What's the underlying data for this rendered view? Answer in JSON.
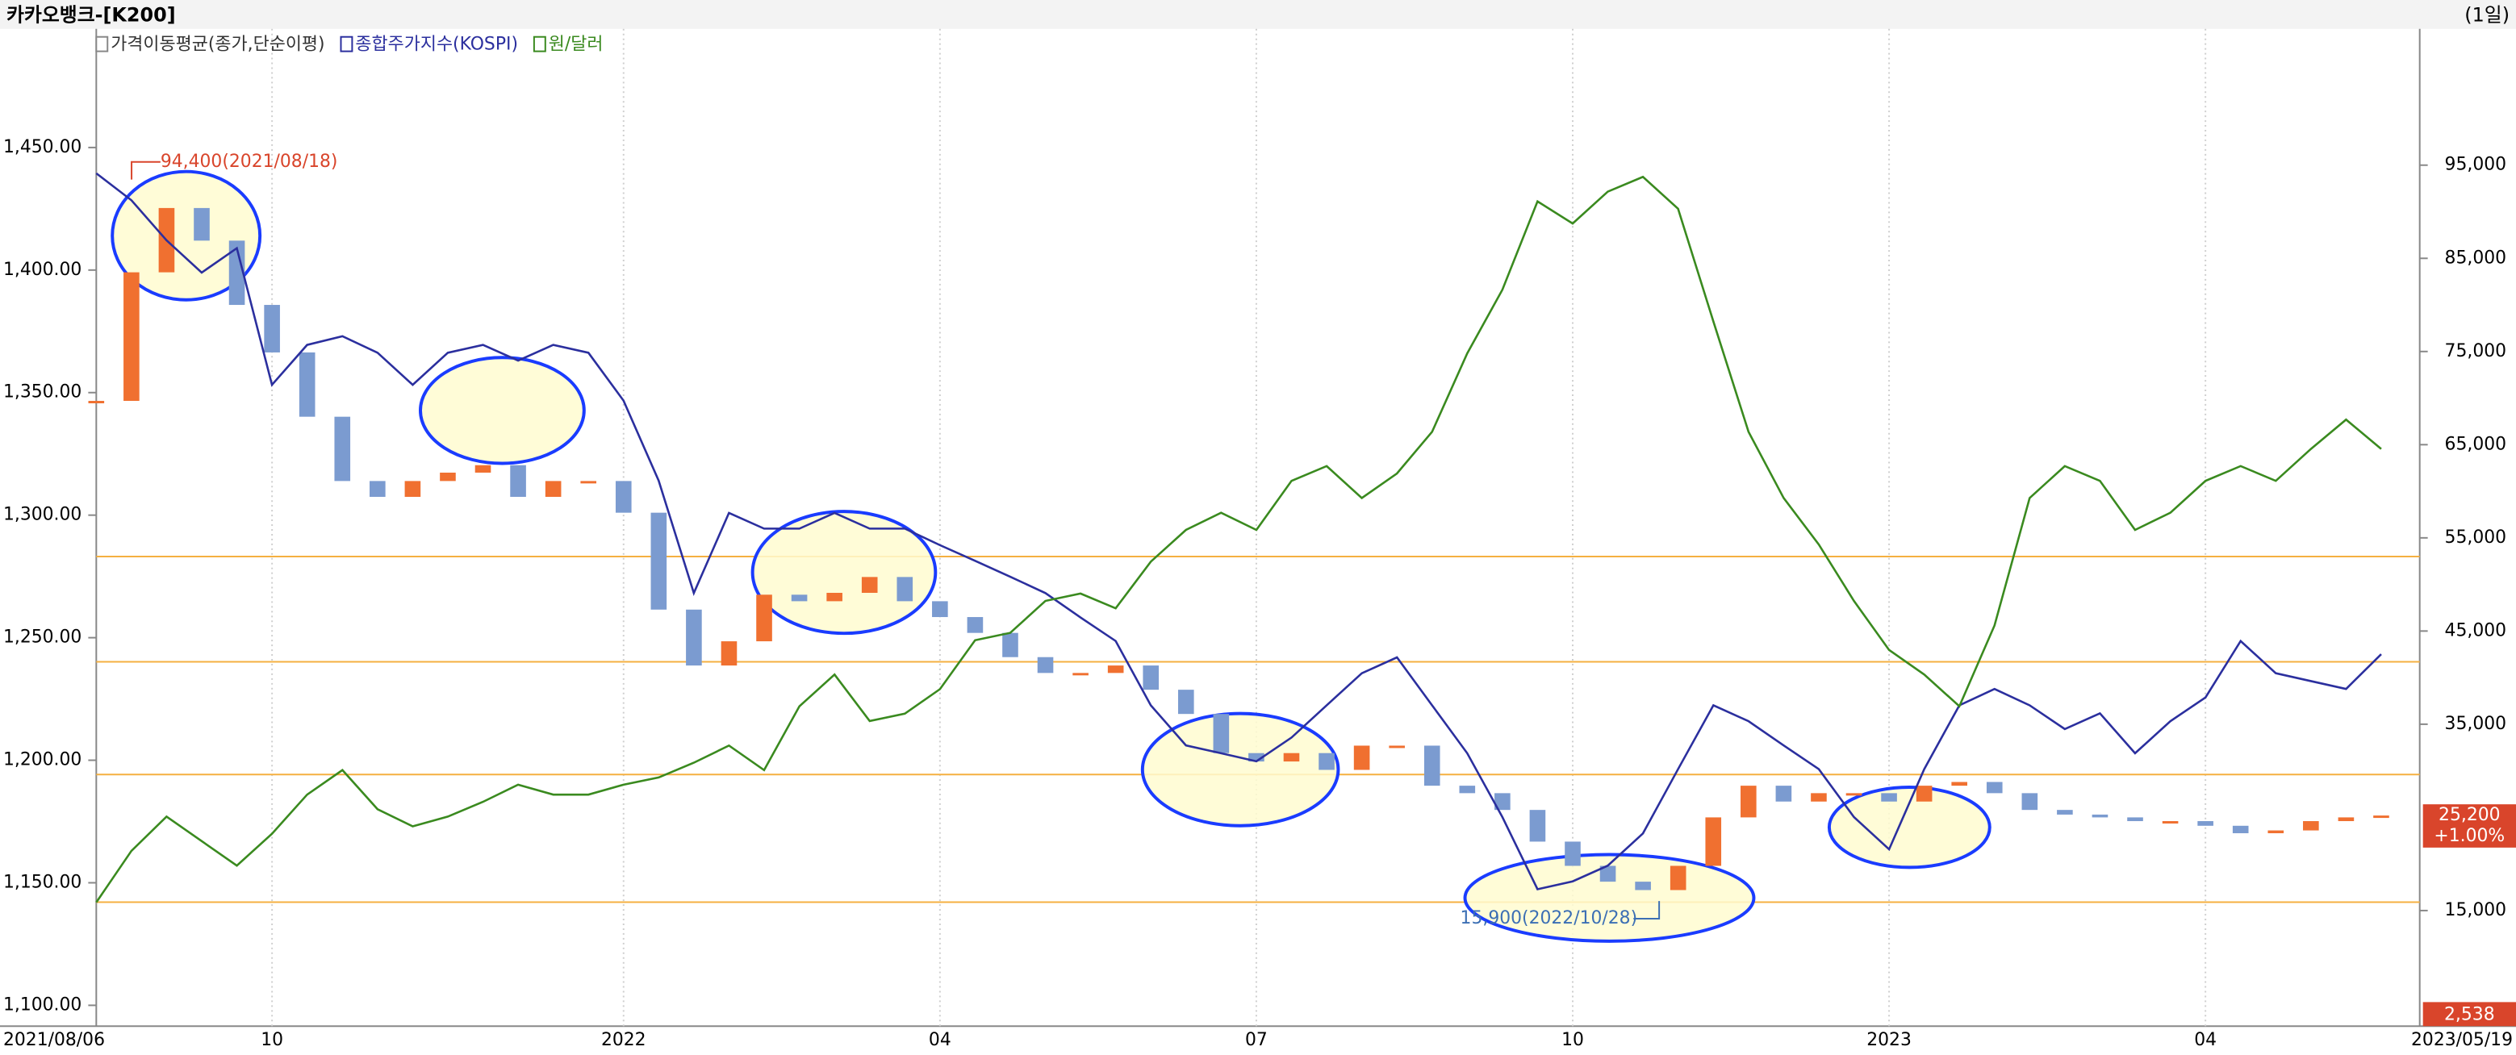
{
  "chart_data": {
    "type": "line",
    "title": "카카오뱅크-[K200]",
    "period": "(1일)",
    "categories": [
      "2021/08/06",
      null,
      null,
      null,
      null,
      "10",
      null,
      null,
      null,
      null,
      null,
      null,
      null,
      null,
      null,
      "2022",
      null,
      null,
      null,
      null,
      null,
      null,
      null,
      null,
      "04",
      null,
      null,
      null,
      null,
      null,
      null,
      null,
      null,
      "07",
      null,
      null,
      null,
      null,
      null,
      null,
      null,
      null,
      "10",
      null,
      null,
      null,
      null,
      null,
      null,
      null,
      null,
      "2023",
      null,
      null,
      null,
      null,
      null,
      null,
      null,
      null,
      "04",
      null,
      null,
      null,
      null,
      "2023/05/19"
    ],
    "ylim": [
      1090,
      1485
    ],
    "yticks": [
      {
        "value": 1100,
        "label": "1,100.00"
      },
      {
        "value": 1150,
        "label": "1,150.00"
      },
      {
        "value": 1200,
        "label": "1,200.00"
      },
      {
        "value": 1250,
        "label": "1,250.00"
      },
      {
        "value": 1300,
        "label": "1,300.00"
      },
      {
        "value": 1350,
        "label": "1,350.00"
      },
      {
        "value": 1400,
        "label": "1,400.00"
      },
      {
        "value": 1450,
        "label": "1,450.00"
      }
    ],
    "y2lim": [
      2200,
      106100
    ],
    "y2ticks": [
      {
        "value": 15000,
        "label": "15,000"
      },
      {
        "value": 35000,
        "label": "35,000"
      },
      {
        "value": 45000,
        "label": "45,000"
      },
      {
        "value": 55000,
        "label": "55,000"
      },
      {
        "value": 65000,
        "label": "65,000"
      },
      {
        "value": 75000,
        "label": "75,000"
      },
      {
        "value": 85000,
        "label": "85,000"
      },
      {
        "value": 95000,
        "label": "95,000"
      }
    ],
    "y3lim": [
      1966,
      3440
    ],
    "grid": true,
    "series": [
      {
        "name": "가격이동평균(종가,단순이평)",
        "type": "candle",
        "axis": "y2",
        "color": "#f07030",
        "down_color": "#7b9bd0",
        "values": [
          69700,
          83500,
          90400,
          86900,
          80000,
          74900,
          68000,
          61100,
          59400,
          61100,
          62000,
          62800,
          59400,
          61100,
          61100,
          57700,
          47300,
          41300,
          43900,
          48900,
          48200,
          49100,
          50800,
          48200,
          46500,
          44800,
          42200,
          40500,
          40500,
          41300,
          38700,
          36100,
          31900,
          31000,
          31900,
          30100,
          32700,
          32700,
          28400,
          27600,
          25800,
          22400,
          19800,
          18100,
          17200,
          19800,
          25000,
          28400,
          26700,
          27600,
          27600,
          26700,
          28400,
          28800,
          27600,
          25800,
          25300,
          25000,
          24600,
          24600,
          24100,
          23300,
          23600,
          24600,
          25000,
          25200
        ],
        "value_labels": [
          null,
          null,
          null,
          null,
          null,
          null,
          null,
          null,
          null,
          null,
          null,
          null,
          null,
          null,
          null,
          null,
          null,
          null,
          null,
          null,
          null,
          null,
          null,
          null,
          null,
          null,
          null,
          null,
          null,
          null,
          null,
          null,
          null,
          null,
          null,
          null,
          null,
          null,
          null,
          null,
          null,
          null,
          null,
          null,
          null,
          null,
          null,
          null,
          null,
          null,
          null,
          null,
          null,
          null,
          null,
          null,
          null,
          null,
          null,
          null,
          null,
          null,
          null,
          null,
          null,
          "25,200"
        ],
        "change_label": "+1.00%"
      },
      {
        "name": "종합주가지수(KOSPI)",
        "type": "line",
        "axis": "y3",
        "color": "#2b2f9e",
        "values": [
          3270,
          3229,
          3168,
          3119,
          3156,
          2948,
          3009,
          3022,
          2997,
          2948,
          2997,
          3009,
          2985,
          3009,
          2997,
          2924,
          2802,
          2631,
          2753,
          2729,
          2729,
          2753,
          2729,
          2729,
          2704,
          2680,
          2656,
          2631,
          2594,
          2558,
          2460,
          2399,
          2387,
          2375,
          2411,
          2460,
          2509,
          2533,
          2460,
          2387,
          2290,
          2180,
          2192,
          2216,
          2265,
          2363,
          2460,
          2436,
          2399,
          2363,
          2290,
          2241,
          2363,
          2460,
          2485,
          2460,
          2424,
          2448,
          2387,
          2436,
          2472,
          2558,
          2509,
          2497,
          2485,
          2538
        ],
        "value_labels": [
          null,
          null,
          null,
          null,
          null,
          null,
          null,
          null,
          null,
          null,
          null,
          null,
          null,
          null,
          null,
          null,
          null,
          null,
          null,
          null,
          null,
          null,
          null,
          null,
          null,
          null,
          null,
          null,
          null,
          null,
          null,
          null,
          null,
          null,
          null,
          null,
          null,
          null,
          null,
          null,
          null,
          null,
          null,
          null,
          null,
          null,
          null,
          null,
          null,
          null,
          null,
          null,
          null,
          null,
          null,
          null,
          null,
          null,
          null,
          null,
          null,
          null,
          null,
          null,
          null,
          "2,538"
        ]
      },
      {
        "name": "원/달러",
        "type": "line",
        "axis": "y",
        "color": "#3a8a1f",
        "values": [
          1142,
          1163,
          1177,
          1167,
          1157,
          1170,
          1186,
          1196,
          1180,
          1173,
          1177,
          1183,
          1190,
          1186,
          1186,
          1190,
          1193,
          1199,
          1206,
          1196,
          1222,
          1235,
          1216,
          1219,
          1229,
          1249,
          1252,
          1265,
          1268,
          1262,
          1281,
          1294,
          1301,
          1294,
          1314,
          1320,
          1307,
          1317,
          1334,
          1366,
          1392,
          1428,
          1419,
          1432,
          1438,
          1425,
          1379,
          1334,
          1307,
          1288,
          1265,
          1245,
          1235,
          1222,
          1255,
          1307,
          1320,
          1314,
          1294,
          1301,
          1314,
          1320,
          1314,
          1327,
          1339,
          1327
        ]
      }
    ],
    "hlines": {
      "axis": "y2",
      "color": "#f5b041",
      "values": [
        53000,
        41700,
        29600,
        15900
      ]
    },
    "annotations": [
      {
        "text": "94,400(2021/08/18)",
        "color": "#d9452b"
      },
      {
        "text": "15,900(2022/10/28)",
        "color": "#3c6fb4"
      }
    ]
  }
}
